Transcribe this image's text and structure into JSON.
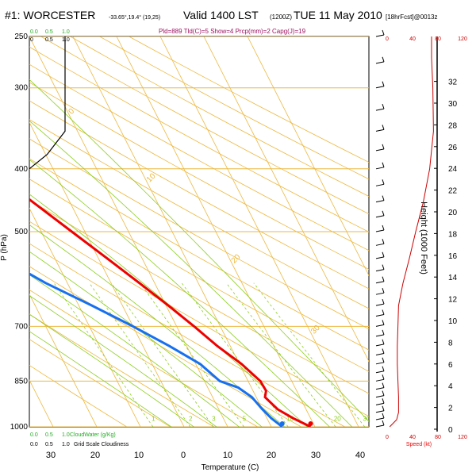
{
  "header": {
    "station": "#1: WORCESTER",
    "coords": "-33.65°,19.4° (19,25)",
    "valid": "Valid 1400 LST",
    "utc": "(1200Z)",
    "date": "TUE 11 May 2010",
    "forecast": "[18hrFcst]@0013z",
    "indices": "Pld=889 Tld(C)=5 Show=4 Prcp(mm)=2 Capg(J)=19"
  },
  "axes": {
    "ylabel": "P (hPa)",
    "xlabel": "Temperature (C)",
    "height_label": "Height (1000 Feet)",
    "speed_label": "Speed (kt)",
    "cloud_water_label": "CloudWater (g/Kg)",
    "cloudiness_label": "Grid Scale Cloudiness",
    "pressure_ticks": [
      "250",
      "300",
      "400",
      "500",
      "700",
      "850",
      "1000"
    ],
    "temp_ticks": [
      "30",
      "20",
      "10",
      "0",
      "10",
      "20",
      "30",
      "40"
    ],
    "height_ticks": [
      "0",
      "2",
      "4",
      "6",
      "8",
      "10",
      "12",
      "14",
      "16",
      "18",
      "20",
      "22",
      "24",
      "26",
      "28",
      "30",
      "32"
    ],
    "cloud_top_ticks": [
      "0.0",
      "0.5",
      "1.0"
    ],
    "cloud_mid_ticks": [
      "0",
      "0.5",
      "1.0"
    ],
    "cloud_bottom_green_ticks": [
      "0.0",
      "0.5",
      "1.0"
    ],
    "cloud_bottom_black_ticks": [
      "0.0",
      "0.5",
      "1.0"
    ],
    "speed_top_ticks": [
      "0",
      "40",
      "80",
      "120"
    ],
    "speed_bottom_ticks": [
      "0",
      "40",
      "80",
      "120"
    ],
    "isotherm_labels": [
      "0",
      "10",
      "20",
      "30",
      "-10",
      "-20",
      "-30",
      "-40"
    ],
    "mixing_ratio_labels": [
      "1",
      "2",
      "3",
      "5",
      "10",
      "20",
      "30"
    ]
  },
  "colors": {
    "temperature": "#ee0000",
    "dewpoint": "#1670f0",
    "isotherm": "#ecb840",
    "isobar": "#ecb840",
    "dry_adiabat": "#ecb840",
    "moist_adiabat": "#8ccf1e",
    "mixing_ratio": "#8ccf1e",
    "cloud": "#000000",
    "wind_speed": "#cc0000",
    "green_text": "#22aa22",
    "title": "#000000",
    "index_text": "#9a1060"
  },
  "chart_data": {
    "type": "skew-t log-p sounding",
    "title": "#1: WORCESTER Valid 1400 LST TUE 11 May 2010",
    "xlabel": "Temperature (C)",
    "ylabel": "P (hPa)",
    "pressure_range": [
      1000,
      250
    ],
    "temperature": [
      {
        "p": 1000,
        "t": 19.0
      },
      {
        "p": 970,
        "t": 16.0
      },
      {
        "p": 940,
        "t": 13.5
      },
      {
        "p": 900,
        "t": 12.0
      },
      {
        "p": 880,
        "t": 13.0
      },
      {
        "p": 850,
        "t": 12.8
      },
      {
        "p": 800,
        "t": 10.5
      },
      {
        "p": 750,
        "t": 7.0
      },
      {
        "p": 700,
        "t": 4.0
      },
      {
        "p": 650,
        "t": 0.5
      },
      {
        "p": 600,
        "t": -3.5
      },
      {
        "p": 550,
        "t": -8.0
      },
      {
        "p": 500,
        "t": -13.0
      },
      {
        "p": 450,
        "t": -18.5
      },
      {
        "p": 400,
        "t": -24.5
      },
      {
        "p": 350,
        "t": -31.5
      },
      {
        "p": 300,
        "t": -39.5
      },
      {
        "p": 270,
        "t": -45.5
      },
      {
        "p": 250,
        "t": -49.0
      }
    ],
    "dewpoint": [
      {
        "p": 1000,
        "t": 12.5
      },
      {
        "p": 970,
        "t": 11.0
      },
      {
        "p": 940,
        "t": 10.0
      },
      {
        "p": 900,
        "t": 9.0
      },
      {
        "p": 870,
        "t": 7.0
      },
      {
        "p": 850,
        "t": 3.5
      },
      {
        "p": 800,
        "t": 1.0
      },
      {
        "p": 750,
        "t": -4.0
      },
      {
        "p": 700,
        "t": -10.0
      },
      {
        "p": 650,
        "t": -17.0
      },
      {
        "p": 600,
        "t": -25.0
      },
      {
        "p": 550,
        "t": -32.0
      },
      {
        "p": 500,
        "t": -38.0
      },
      {
        "p": 450,
        "t": -42.5
      },
      {
        "p": 400,
        "t": -46.0
      },
      {
        "p": 350,
        "t": -51.0
      },
      {
        "p": 300,
        "t": -58.0
      },
      {
        "p": 270,
        "t": -63.0
      },
      {
        "p": 250,
        "t": -66.5
      }
    ],
    "cloudiness_profile": [
      {
        "p": 400,
        "v": 0.0
      },
      {
        "p": 380,
        "v": 0.5
      },
      {
        "p": 350,
        "v": 1.0
      },
      {
        "p": 250,
        "v": 1.0
      }
    ],
    "wind_speed_profile": [
      {
        "p": 1000,
        "kt": 4
      },
      {
        "p": 975,
        "kt": 15
      },
      {
        "p": 950,
        "kt": 18
      },
      {
        "p": 900,
        "kt": 18
      },
      {
        "p": 850,
        "kt": 17
      },
      {
        "p": 800,
        "kt": 16
      },
      {
        "p": 750,
        "kt": 16
      },
      {
        "p": 700,
        "kt": 17
      },
      {
        "p": 650,
        "kt": 18
      },
      {
        "p": 600,
        "kt": 25
      },
      {
        "p": 550,
        "kt": 35
      },
      {
        "p": 500,
        "kt": 45
      },
      {
        "p": 450,
        "kt": 57
      },
      {
        "p": 400,
        "kt": 67
      },
      {
        "p": 350,
        "kt": 73
      },
      {
        "p": 300,
        "kt": 72
      },
      {
        "p": 270,
        "kt": 70
      },
      {
        "p": 250,
        "kt": 70
      }
    ],
    "isotherms_c": [
      -110,
      -100,
      -90,
      -80,
      -70,
      -60,
      -50,
      -40,
      -30,
      -20,
      -10,
      0,
      10,
      20,
      30,
      40,
      50
    ],
    "mixing_ratios_gkg": [
      1,
      2,
      3,
      5,
      10,
      20,
      30
    ]
  }
}
